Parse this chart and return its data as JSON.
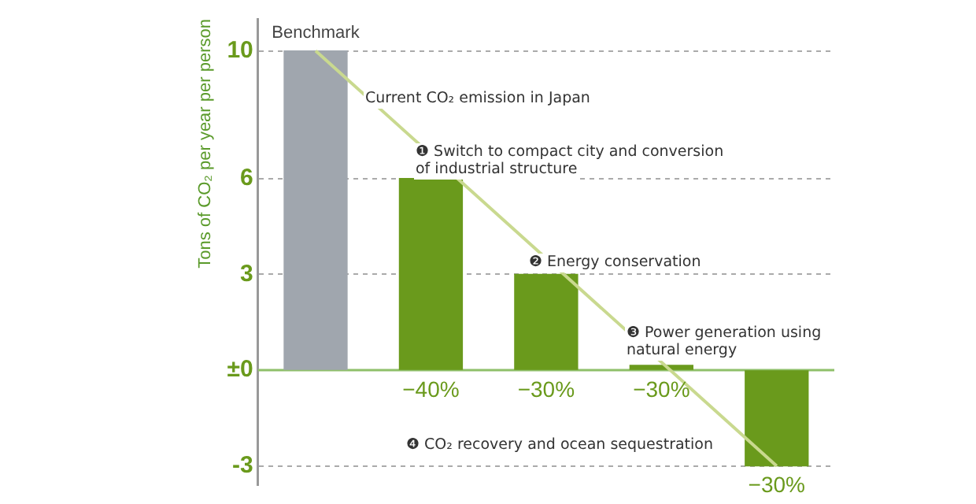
{
  "chart_data": {
    "type": "bar",
    "ylabel": "Tons of CO₂ per year per person",
    "categories": [
      "Benchmark",
      null,
      null,
      null,
      null
    ],
    "series": [
      {
        "colors": [
          "#a0a6ae",
          "#6a9a1c",
          "#6a9a1c",
          "#6a9a1c",
          "#6a9a1c"
        ],
        "values": [
          10,
          6,
          3,
          0.15,
          -3
        ]
      },
      {
        "type": "line",
        "color": "#c9d98f",
        "values": [
          10,
          null,
          null,
          null,
          -3
        ]
      }
    ],
    "ref_lines": [
      {
        "axis": "y",
        "value": 0,
        "color": "#8fc06a"
      }
    ],
    "ylim": [
      -3.6,
      11
    ],
    "yticks": [
      10,
      6,
      3,
      {
        "value": 0,
        "label": "±0"
      },
      -3
    ],
    "grid": "y",
    "legend": false,
    "annotations": [
      "Current CO₂ emission in Japan",
      "❶ Switch to compact city and conversion of industrial structure",
      "❷ Energy conservation",
      "❸ Power generation using natural energy",
      "❹ CO₂ recovery and ocean sequestration",
      "−40%",
      "−30%",
      "−30%",
      "−30%"
    ]
  }
}
